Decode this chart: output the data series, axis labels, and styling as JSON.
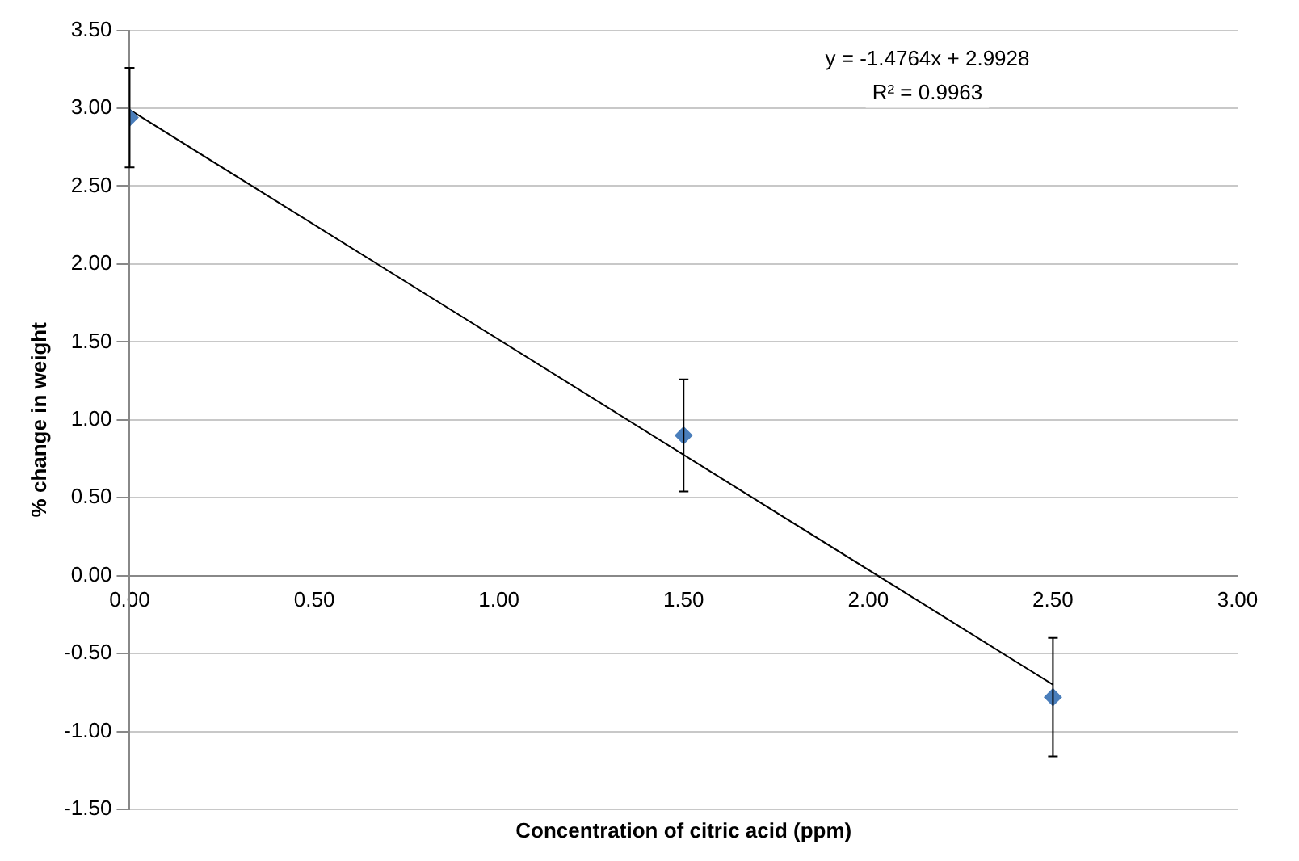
{
  "chart_data": {
    "type": "scatter",
    "xlabel": "Concentration of citric acid (ppm)",
    "ylabel": "% change in weight",
    "series": [
      {
        "type": "scatter",
        "color": "#4a7ebb",
        "x": [
          0,
          1.5,
          2.5
        ],
        "values": [
          2.94,
          0.9,
          -0.78
        ],
        "errors": [
          0.32,
          0.36,
          0.38
        ],
        "marker": "diamond"
      },
      {
        "type": "line",
        "color": "#000000",
        "x": [
          0,
          2.5
        ],
        "values": [
          2.99,
          -0.7
        ],
        "marker": "none",
        "line_style": "solid"
      }
    ],
    "annotations": [
      "y = -1.4764x + 2.9928",
      "R² = 0.9963"
    ],
    "xlim": [
      0,
      3
    ],
    "xticks": [
      {
        "value": 0,
        "label": "0.00"
      },
      {
        "value": 0.5,
        "label": "0.50"
      },
      {
        "value": 1,
        "label": "1.00"
      },
      {
        "value": 1.5,
        "label": "1.50"
      },
      {
        "value": 2,
        "label": "2.00"
      },
      {
        "value": 2.5,
        "label": "2.50"
      },
      {
        "value": 3,
        "label": "3.00"
      }
    ],
    "ylim": [
      -1.5,
      3.5
    ],
    "yticks": [
      {
        "value": -1.5,
        "label": "-1.50"
      },
      {
        "value": -1,
        "label": "-1.00"
      },
      {
        "value": -0.5,
        "label": "-0.50"
      },
      {
        "value": 0,
        "label": "0.00"
      },
      {
        "value": 0.5,
        "label": "0.50"
      },
      {
        "value": 1,
        "label": "1.00"
      },
      {
        "value": 1.5,
        "label": "1.50"
      },
      {
        "value": 2,
        "label": "2.00"
      },
      {
        "value": 2.5,
        "label": "2.50"
      },
      {
        "value": 3,
        "label": "3.00"
      },
      {
        "value": 3.5,
        "label": "3.50"
      }
    ],
    "grid": "y",
    "legend": false
  }
}
